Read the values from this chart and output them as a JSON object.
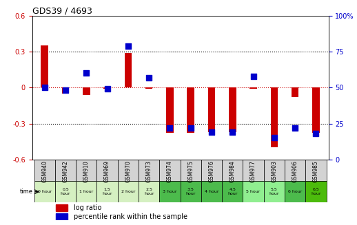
{
  "title": "GDS39 / 4693",
  "samples": [
    "GSM940",
    "GSM942",
    "GSM910",
    "GSM969",
    "GSM970",
    "GSM973",
    "GSM974",
    "GSM975",
    "GSM976",
    "GSM984",
    "GSM977",
    "GSM903",
    "GSM906",
    "GSM985"
  ],
  "time_labels": [
    "0 hour",
    "0.5\nhour",
    "1 hour",
    "1.5\nhour",
    "2 hour",
    "2.5\nhour",
    "3 hour",
    "3.5\nhour",
    "4 hour",
    "4.5\nhour",
    "5 hour",
    "5.5\nhour",
    "6 hour",
    "6.5\nhour"
  ],
  "log_ratio": [
    0.35,
    -0.05,
    -0.06,
    -0.01,
    0.29,
    -0.01,
    -0.38,
    -0.38,
    -0.37,
    -0.37,
    -0.01,
    -0.5,
    -0.08,
    -0.38
  ],
  "percentile": [
    50,
    48,
    60,
    49,
    79,
    57,
    22,
    22,
    19,
    19,
    58,
    15,
    22,
    18
  ],
  "time_colors": [
    "#d5f0c1",
    "#d5f0c1",
    "#d5f0c1",
    "#d5f0c1",
    "#d5f0c1",
    "#d5f0c1",
    "#4cbb4c",
    "#4cbb4c",
    "#4cbb4c",
    "#4cbb4c",
    "#90ee90",
    "#90ee90",
    "#4cbb4c",
    "#4cbb0c"
  ],
  "bar_color": "#cc0000",
  "dot_color": "#0000cc",
  "ylim_left": [
    -0.6,
    0.6
  ],
  "ylim_right": [
    0,
    100
  ],
  "yticks_left": [
    -0.6,
    -0.3,
    0.0,
    0.3,
    0.6
  ],
  "yticks_right": [
    0,
    25,
    50,
    75,
    100
  ],
  "hline_color": "#cc0000",
  "grid_color": "#000000",
  "bg_color": "#ffffff",
  "sample_bg": "#d3d3d3",
  "legend_log_ratio": "log ratio",
  "legend_percentile": "percentile rank within the sample"
}
